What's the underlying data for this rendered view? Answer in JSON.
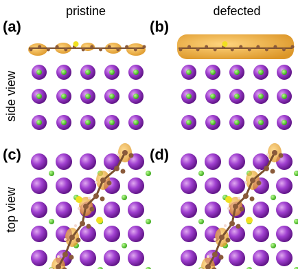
{
  "columns": [
    "pristine",
    "defected"
  ],
  "panels": [
    "(a)",
    "(b)",
    "(c)",
    "(d)"
  ],
  "rows": [
    "side view",
    "top view"
  ]
}
